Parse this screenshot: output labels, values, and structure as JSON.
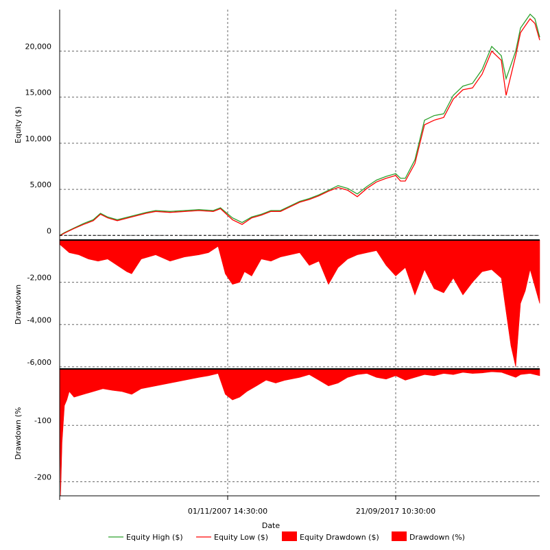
{
  "chart_data": [
    {
      "type": "line",
      "panel": "equity",
      "ylabel": "Equity ($)",
      "ylim": [
        -500,
        24500
      ],
      "yticks": [
        0,
        5000,
        10000,
        15000,
        20000
      ],
      "ytick_labels": [
        "0",
        "5,000",
        "10,000",
        "15,000",
        "20,000"
      ],
      "grid": true,
      "series": [
        {
          "name": "Equity High ($)",
          "color": "#2ca02c",
          "x": [
            0,
            0.01,
            0.03,
            0.05,
            0.07,
            0.085,
            0.1,
            0.12,
            0.15,
            0.18,
            0.2,
            0.23,
            0.26,
            0.29,
            0.32,
            0.335,
            0.36,
            0.38,
            0.4,
            0.42,
            0.44,
            0.46,
            0.48,
            0.5,
            0.52,
            0.54,
            0.56,
            0.58,
            0.6,
            0.62,
            0.64,
            0.66,
            0.68,
            0.7,
            0.71,
            0.72,
            0.74,
            0.76,
            0.78,
            0.8,
            0.82,
            0.84,
            0.86,
            0.88,
            0.9,
            0.92,
            0.93,
            0.95,
            0.96,
            0.98,
            0.99,
            1.0
          ],
          "y": [
            0,
            300,
            800,
            1300,
            1700,
            2400,
            2000,
            1700,
            2100,
            2500,
            2700,
            2600,
            2700,
            2800,
            2700,
            3000,
            1900,
            1400,
            2000,
            2300,
            2700,
            2700,
            3200,
            3700,
            4000,
            4400,
            4900,
            5400,
            5100,
            4500,
            5300,
            6000,
            6400,
            6700,
            6200,
            6200,
            8200,
            12500,
            13000,
            13200,
            15200,
            16200,
            16500,
            18000,
            20500,
            19500,
            17000,
            20000,
            22500,
            24000,
            23500,
            21500
          ]
        },
        {
          "name": "Equity Low ($)",
          "color": "#ff0000",
          "x": [
            0,
            0.01,
            0.03,
            0.05,
            0.07,
            0.085,
            0.1,
            0.12,
            0.15,
            0.18,
            0.2,
            0.23,
            0.26,
            0.29,
            0.32,
            0.335,
            0.36,
            0.38,
            0.4,
            0.42,
            0.44,
            0.46,
            0.48,
            0.5,
            0.52,
            0.54,
            0.56,
            0.58,
            0.6,
            0.62,
            0.64,
            0.66,
            0.68,
            0.7,
            0.71,
            0.72,
            0.74,
            0.76,
            0.78,
            0.8,
            0.82,
            0.84,
            0.86,
            0.88,
            0.9,
            0.92,
            0.93,
            0.95,
            0.96,
            0.98,
            0.99,
            1.0
          ],
          "y": [
            -50,
            250,
            750,
            1200,
            1600,
            2300,
            1900,
            1600,
            2000,
            2400,
            2600,
            2500,
            2600,
            2700,
            2600,
            2900,
            1700,
            1200,
            1900,
            2200,
            2600,
            2600,
            3100,
            3600,
            3900,
            4300,
            4800,
            5200,
            4900,
            4200,
            5100,
            5800,
            6200,
            6500,
            5900,
            5900,
            7800,
            12000,
            12500,
            12800,
            14800,
            15800,
            16000,
            17500,
            20000,
            19000,
            15200,
            19500,
            22000,
            23500,
            23000,
            21200
          ]
        }
      ]
    },
    {
      "type": "area",
      "panel": "drawdown-dollars",
      "ylabel": "Drawdown",
      "ylim": [
        -6100,
        0
      ],
      "yticks": [
        -2000,
        -4000,
        -6000
      ],
      "ytick_labels": [
        "-2,000",
        "-4,000",
        "-6,000"
      ],
      "grid": true,
      "series": [
        {
          "name": "Equity Drawdown ($)",
          "color": "#ff0000",
          "x": [
            0,
            0.02,
            0.04,
            0.06,
            0.08,
            0.1,
            0.12,
            0.14,
            0.15,
            0.17,
            0.2,
            0.23,
            0.26,
            0.29,
            0.31,
            0.33,
            0.345,
            0.36,
            0.375,
            0.385,
            0.4,
            0.42,
            0.44,
            0.46,
            0.48,
            0.5,
            0.52,
            0.54,
            0.56,
            0.58,
            0.6,
            0.62,
            0.64,
            0.66,
            0.68,
            0.7,
            0.72,
            0.74,
            0.76,
            0.78,
            0.8,
            0.82,
            0.84,
            0.86,
            0.88,
            0.9,
            0.92,
            0.94,
            0.95,
            0.96,
            0.97,
            0.98,
            1.0
          ],
          "y": [
            -200,
            -600,
            -700,
            -900,
            -1000,
            -900,
            -1200,
            -1500,
            -1600,
            -900,
            -700,
            -1000,
            -800,
            -700,
            -600,
            -300,
            -1600,
            -2100,
            -2000,
            -1500,
            -1700,
            -900,
            -1000,
            -800,
            -700,
            -600,
            -1200,
            -1000,
            -2100,
            -1300,
            -900,
            -700,
            -600,
            -500,
            -1200,
            -1700,
            -1300,
            -2600,
            -1400,
            -2300,
            -2500,
            -1800,
            -2600,
            -2000,
            -1500,
            -1400,
            -1800,
            -5000,
            -6000,
            -3000,
            -2400,
            -1400,
            -3000
          ]
        }
      ]
    },
    {
      "type": "area",
      "panel": "drawdown-percent",
      "ylabel": "Drawdown (%",
      "ylim": [
        -225,
        0
      ],
      "yticks": [
        -100,
        -200
      ],
      "ytick_labels": [
        "-100",
        "-200"
      ],
      "grid": true,
      "series": [
        {
          "name": "Drawdown (%)",
          "color": "#ff0000",
          "x": [
            0,
            0.002,
            0.005,
            0.01,
            0.015,
            0.02,
            0.03,
            0.05,
            0.07,
            0.09,
            0.11,
            0.13,
            0.15,
            0.17,
            0.2,
            0.23,
            0.26,
            0.29,
            0.31,
            0.33,
            0.345,
            0.36,
            0.375,
            0.39,
            0.41,
            0.43,
            0.45,
            0.47,
            0.5,
            0.52,
            0.54,
            0.56,
            0.58,
            0.6,
            0.62,
            0.64,
            0.66,
            0.68,
            0.7,
            0.72,
            0.74,
            0.76,
            0.78,
            0.8,
            0.82,
            0.84,
            0.86,
            0.88,
            0.9,
            0.92,
            0.95,
            0.96,
            0.98,
            1.0
          ],
          "y": [
            -40,
            -225,
            -130,
            -65,
            -55,
            -40,
            -50,
            -45,
            -40,
            -35,
            -38,
            -40,
            -45,
            -35,
            -30,
            -25,
            -20,
            -15,
            -12,
            -8,
            -45,
            -55,
            -50,
            -40,
            -30,
            -20,
            -25,
            -20,
            -15,
            -10,
            -20,
            -30,
            -25,
            -15,
            -10,
            -8,
            -15,
            -18,
            -12,
            -20,
            -15,
            -10,
            -12,
            -8,
            -10,
            -6,
            -8,
            -7,
            -5,
            -6,
            -15,
            -10,
            -8,
            -12
          ]
        }
      ]
    }
  ],
  "xaxis": {
    "label": "Date",
    "tick_labels": [
      "01/11/2007 14:30:00",
      "21/09/2017 10:30:00"
    ],
    "tick_positions": [
      0.35,
      0.7
    ]
  },
  "legend": {
    "placement": "bottom",
    "items": [
      {
        "label": "Equity High ($)",
        "kind": "line",
        "color": "#2ca02c"
      },
      {
        "label": "Equity Low ($)",
        "kind": "line",
        "color": "#ff0000"
      },
      {
        "label": "Equity Drawdown ($)",
        "kind": "box",
        "color": "#ff0000"
      },
      {
        "label": "Drawdown (%)",
        "kind": "box",
        "color": "#ff0000"
      }
    ]
  }
}
